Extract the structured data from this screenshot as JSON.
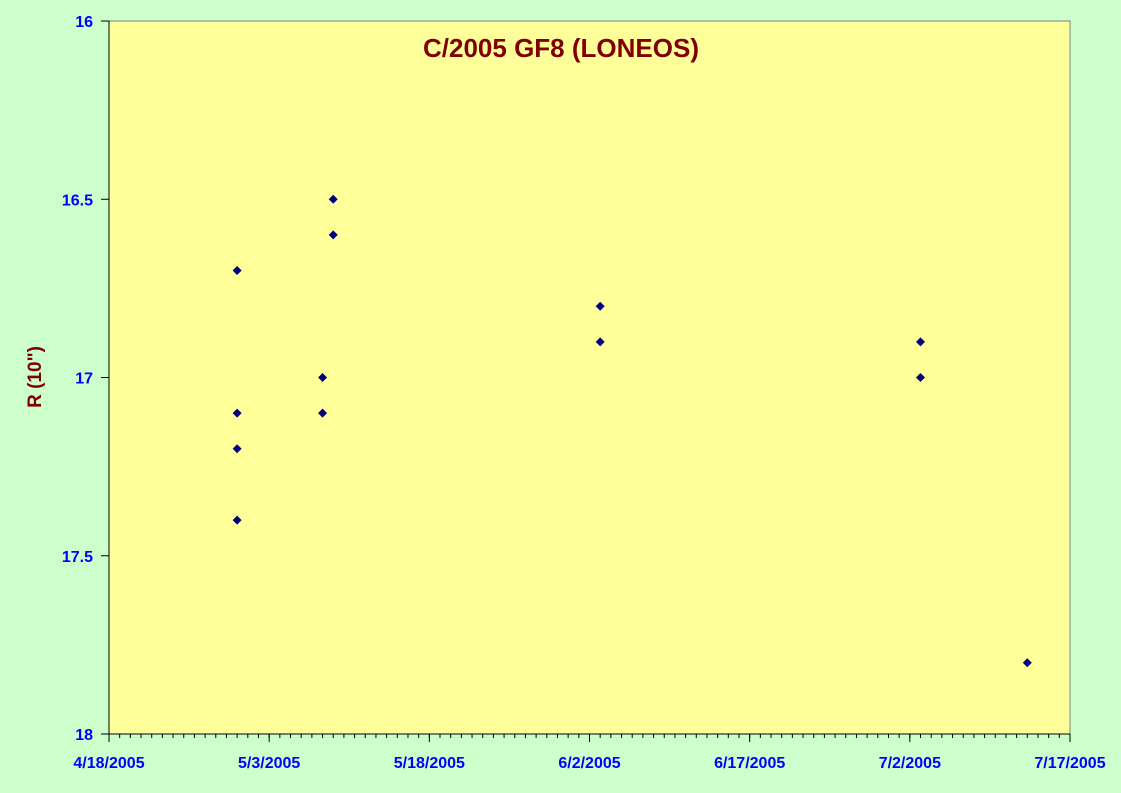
{
  "chart_data": {
    "type": "scatter",
    "title": "C/2005 GF8 (LONEOS)",
    "xlabel": "",
    "ylabel": "R (10\")",
    "x_ticks": [
      "4/18/2005",
      "5/3/2005",
      "5/18/2005",
      "6/2/2005",
      "6/17/2005",
      "7/2/2005",
      "7/17/2005"
    ],
    "y_ticks": [
      "16",
      "16.5",
      "17",
      "17.5",
      "18"
    ],
    "xlim": [
      "2005-04-18",
      "2005-07-17"
    ],
    "ylim": [
      16,
      18
    ],
    "y_reversed": true,
    "grid": false,
    "legend": "none",
    "colors": {
      "page_background": "#ccffcc",
      "plot_background": "#ffff99",
      "marker": "#000080",
      "title_text": "#800000",
      "tick_text": "#0000ff"
    },
    "series": [
      {
        "marker": "diamond",
        "points": [
          {
            "x": "2005-04-30",
            "y": 16.7
          },
          {
            "x": "2005-04-30",
            "y": 17.1
          },
          {
            "x": "2005-04-30",
            "y": 17.2
          },
          {
            "x": "2005-04-30",
            "y": 17.4
          },
          {
            "x": "2005-05-08",
            "y": 17.0
          },
          {
            "x": "2005-05-08",
            "y": 17.1
          },
          {
            "x": "2005-05-09",
            "y": 16.5
          },
          {
            "x": "2005-05-09",
            "y": 16.6
          },
          {
            "x": "2005-06-03",
            "y": 16.8
          },
          {
            "x": "2005-06-03",
            "y": 16.9
          },
          {
            "x": "2005-07-03",
            "y": 16.9
          },
          {
            "x": "2005-07-03",
            "y": 17.0
          },
          {
            "x": "2005-07-13",
            "y": 17.8
          }
        ]
      }
    ]
  }
}
